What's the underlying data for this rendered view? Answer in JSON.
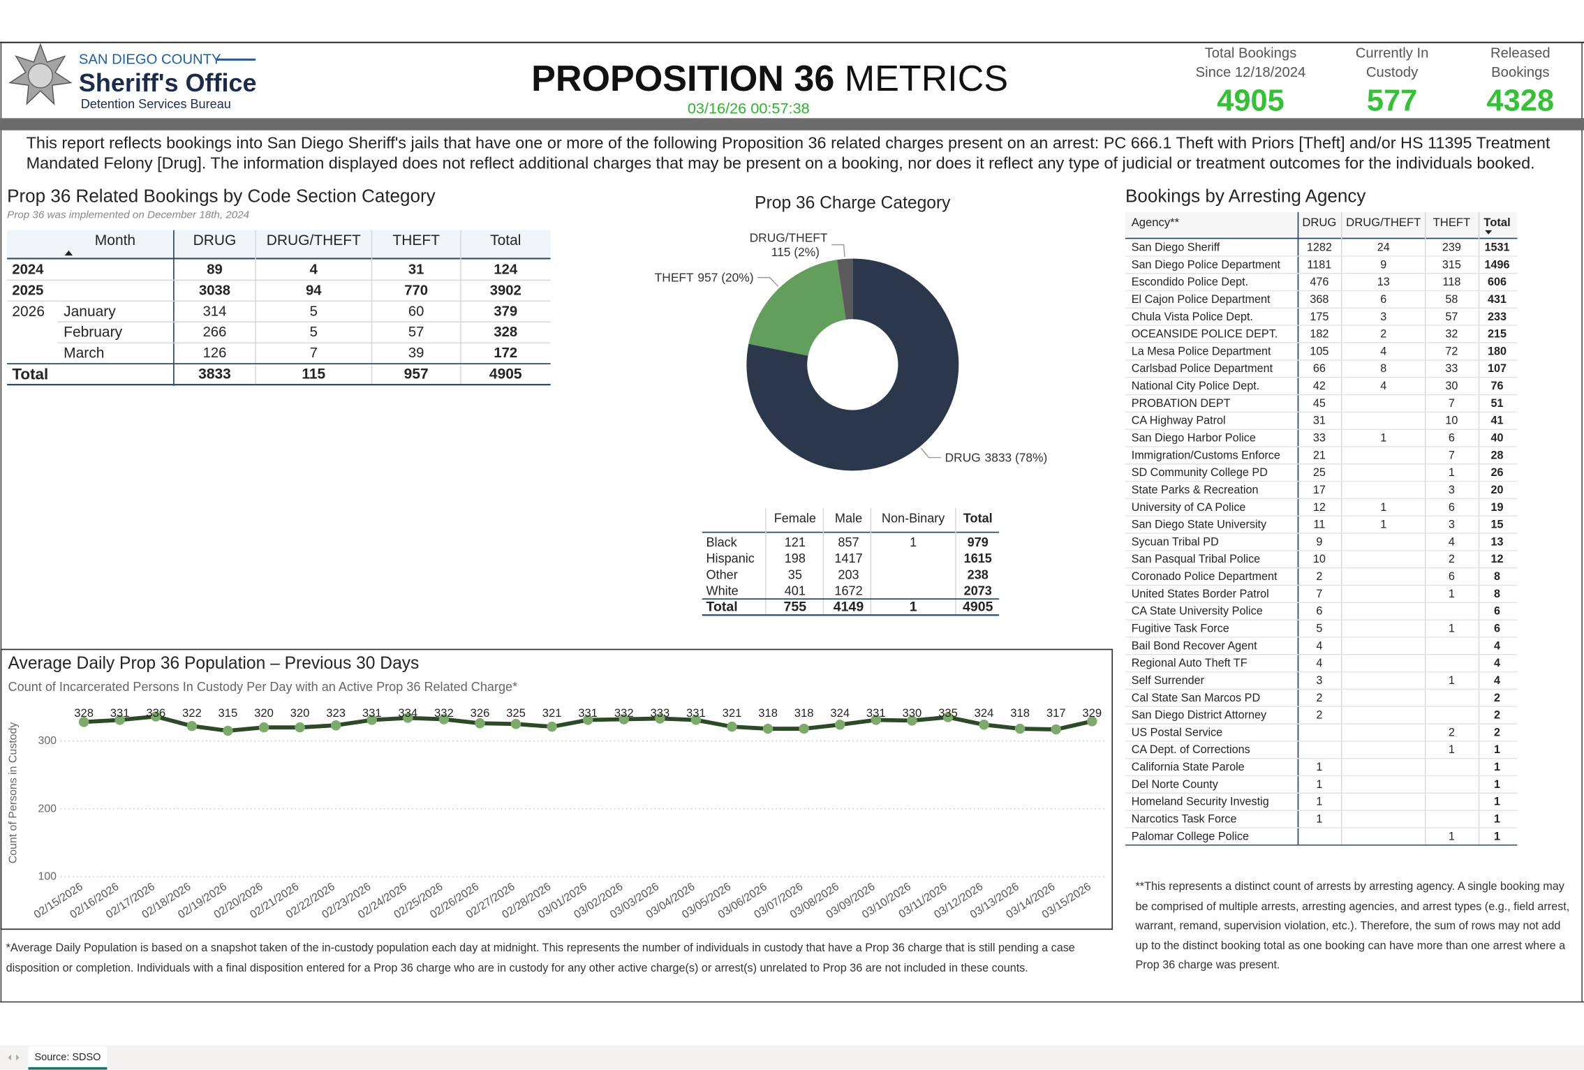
{
  "header": {
    "county": "SAN DIEGO COUNTY",
    "office": "Sheriff's Office",
    "bureau": "Detention Services Bureau",
    "title_bold": "PROPOSITION 36",
    "title_light": "METRICS",
    "timestamp": "03/16/26 00:57:38"
  },
  "kpis": [
    {
      "label": [
        "Total Bookings",
        "Since 12/18/2024"
      ],
      "value": 4905
    },
    {
      "label": [
        "Currently In",
        "Custody"
      ],
      "value": 577
    },
    {
      "label": [
        "Released",
        "Bookings"
      ],
      "value": 4328
    }
  ],
  "description": "This report reflects bookings into San Diego Sheriff's jails that have one or more of the following Proposition 36 related charges present on an arrest: PC 666.1 Theft with Priors [Theft] and/or HS 11395 Treatment Mandated Felony [Drug]. The information displayed does not reflect additional charges that may be present on a booking, nor does it reflect any type of judicial or treatment outcomes for the individuals booked.",
  "code_table": {
    "title": "Prop 36 Related Bookings by Code Section Category",
    "subtitle": "Prop 36 was implemented on December 18th, 2024",
    "columns": [
      "Month",
      "DRUG",
      "DRUG/THEFT",
      "THEFT",
      "Total"
    ],
    "rows": [
      {
        "label": "2024",
        "values": [
          89,
          4,
          31,
          124
        ]
      },
      {
        "label": "2025",
        "values": [
          3038,
          94,
          770,
          3902
        ]
      },
      {
        "label": "2026",
        "months": [
          {
            "label": "January",
            "values": [
              314,
              5,
              60,
              379
            ]
          },
          {
            "label": "February",
            "values": [
              266,
              5,
              57,
              328
            ]
          },
          {
            "label": "March",
            "values": [
              126,
              7,
              39,
              172
            ]
          }
        ]
      }
    ],
    "total": {
      "label": "Total",
      "values": [
        3833,
        115,
        957,
        4905
      ]
    }
  },
  "chart_data": [
    {
      "type": "donut",
      "title": "Prop 36 Charge Category",
      "categories": [
        "DRUG",
        "THEFT",
        "DRUG/THEFT"
      ],
      "values": [
        3833,
        957,
        115
      ],
      "value_labels": [
        "3833 (78%)",
        "957 (20%)",
        "115 (2%)"
      ],
      "colors": [
        "#2b384b",
        "#629e5c",
        "#5a5a5a"
      ]
    },
    {
      "type": "line",
      "title": "Average Daily Prop 36 Population – Previous 30 Days",
      "subtitle": "Count of Incarcerated Persons In Custody Per Day with an Active Prop 36 Related Charge*",
      "y_label": "Count of Persons in Custody",
      "x": [
        "02/15/2026",
        "02/16/2026",
        "02/17/2026",
        "02/18/2026",
        "02/19/2026",
        "02/20/2026",
        "02/21/2026",
        "02/22/2026",
        "02/23/2026",
        "02/24/2026",
        "02/25/2026",
        "02/26/2026",
        "02/27/2026",
        "02/28/2026",
        "03/01/2026",
        "03/02/2026",
        "03/03/2026",
        "03/04/2026",
        "03/05/2026",
        "03/06/2026",
        "03/07/2026",
        "03/08/2026",
        "03/09/2026",
        "03/10/2026",
        "03/11/2026",
        "03/12/2026",
        "03/13/2026",
        "03/14/2026",
        "03/15/2026"
      ],
      "values": [
        328,
        331,
        336,
        322,
        315,
        320,
        320,
        323,
        331,
        334,
        332,
        326,
        325,
        321,
        331,
        332,
        333,
        331,
        321,
        318,
        318,
        324,
        331,
        330,
        335,
        324,
        318,
        317,
        329
      ],
      "color": "#2d4a26",
      "marker_color": "#7caa6b",
      "ylim": [
        100,
        350
      ],
      "yticks": [
        100,
        200,
        300
      ],
      "grid": true
    }
  ],
  "population_footnote": "*Average Daily Population is based on a snapshot taken of the in-custody population each day at midnight. This represents the number of individuals in custody that have a Prop 36 charge that is still pending a case disposition or completion. Individuals with a final disposition entered for a Prop 36 charge who are in custody for any other active charge(s) or arrest(s) unrelated to Prop 36 are not included in these counts.",
  "demographics_table": {
    "columns": [
      "Female",
      "Male",
      "Non-Binary",
      "Total"
    ],
    "rows": [
      {
        "label": "Black",
        "values": [
          121,
          857,
          1,
          979
        ]
      },
      {
        "label": "Hispanic",
        "values": [
          198,
          1417,
          null,
          1615
        ]
      },
      {
        "label": "Other",
        "values": [
          35,
          203,
          null,
          238
        ]
      },
      {
        "label": "White",
        "values": [
          401,
          1672,
          null,
          2073
        ]
      }
    ],
    "total": {
      "label": "Total",
      "values": [
        755,
        4149,
        1,
        4905
      ]
    }
  },
  "agency_table": {
    "title": "Bookings by Arresting Agency",
    "columns": [
      "Agency**",
      "DRUG",
      "DRUG/THEFT",
      "THEFT",
      "Total"
    ],
    "rows": [
      {
        "name": "San Diego Sheriff",
        "values": [
          1282,
          24,
          239,
          1531
        ]
      },
      {
        "name": "San Diego Police Department",
        "values": [
          1181,
          9,
          315,
          1496
        ]
      },
      {
        "name": "Escondido Police Dept.",
        "values": [
          476,
          13,
          118,
          606
        ]
      },
      {
        "name": "El Cajon Police Department",
        "values": [
          368,
          6,
          58,
          431
        ]
      },
      {
        "name": "Chula Vista Police Dept.",
        "values": [
          175,
          3,
          57,
          233
        ]
      },
      {
        "name": "OCEANSIDE POLICE DEPT.",
        "values": [
          182,
          2,
          32,
          215
        ]
      },
      {
        "name": "La Mesa Police Department",
        "values": [
          105,
          4,
          72,
          180
        ]
      },
      {
        "name": "Carlsbad Police Department",
        "values": [
          66,
          8,
          33,
          107
        ]
      },
      {
        "name": "National City Police Dept.",
        "values": [
          42,
          4,
          30,
          76
        ]
      },
      {
        "name": "PROBATION DEPT",
        "values": [
          45,
          null,
          7,
          51
        ]
      },
      {
        "name": "CA Highway Patrol",
        "values": [
          31,
          null,
          10,
          41
        ]
      },
      {
        "name": "San Diego Harbor Police",
        "values": [
          33,
          1,
          6,
          40
        ]
      },
      {
        "name": "Immigration/Customs Enforce",
        "values": [
          21,
          null,
          7,
          28
        ]
      },
      {
        "name": "SD Community College PD",
        "values": [
          25,
          null,
          1,
          26
        ]
      },
      {
        "name": "State Parks & Recreation",
        "values": [
          17,
          null,
          3,
          20
        ]
      },
      {
        "name": "University of CA Police",
        "values": [
          12,
          1,
          6,
          19
        ]
      },
      {
        "name": "San Diego State University",
        "values": [
          11,
          1,
          3,
          15
        ]
      },
      {
        "name": "Sycuan Tribal PD",
        "values": [
          9,
          null,
          4,
          13
        ]
      },
      {
        "name": "San Pasqual Tribal Police",
        "values": [
          10,
          null,
          2,
          12
        ]
      },
      {
        "name": "Coronado Police Department",
        "values": [
          2,
          null,
          6,
          8
        ]
      },
      {
        "name": "United States Border Patrol",
        "values": [
          7,
          null,
          1,
          8
        ]
      },
      {
        "name": "CA State University Police",
        "values": [
          6,
          null,
          null,
          6
        ]
      },
      {
        "name": "Fugitive Task Force",
        "values": [
          5,
          null,
          1,
          6
        ]
      },
      {
        "name": "Bail Bond Recover Agent",
        "values": [
          4,
          null,
          null,
          4
        ]
      },
      {
        "name": "Regional Auto Theft TF",
        "values": [
          4,
          null,
          null,
          4
        ]
      },
      {
        "name": "Self Surrender",
        "values": [
          3,
          null,
          1,
          4
        ]
      },
      {
        "name": "Cal State San Marcos PD",
        "values": [
          2,
          null,
          null,
          2
        ]
      },
      {
        "name": "San Diego District Attorney",
        "values": [
          2,
          null,
          null,
          2
        ]
      },
      {
        "name": "US Postal Service",
        "values": [
          null,
          null,
          2,
          2
        ]
      },
      {
        "name": "CA Dept. of Corrections",
        "values": [
          null,
          null,
          1,
          1
        ]
      },
      {
        "name": "California State Parole",
        "values": [
          1,
          null,
          null,
          1
        ]
      },
      {
        "name": "Del Norte County",
        "values": [
          1,
          null,
          null,
          1
        ]
      },
      {
        "name": "Homeland Security Investig",
        "values": [
          1,
          null,
          null,
          1
        ]
      },
      {
        "name": "Narcotics Task Force",
        "values": [
          1,
          null,
          null,
          1
        ]
      },
      {
        "name": "Palomar College Police",
        "values": [
          null,
          null,
          1,
          1
        ]
      }
    ],
    "footnote": "**This represents a distinct count of arrests by arresting agency. A single booking may be comprised of multiple arrests, arresting agencies, and arrest types (e.g., field arrest, warrant, remand, supervision violation, etc.). Therefore, the sum of rows may not add up to the distinct booking total as one booking can have more than one arrest where a Prop 36 charge was present."
  },
  "tabs": [
    "Source: SDSO"
  ]
}
